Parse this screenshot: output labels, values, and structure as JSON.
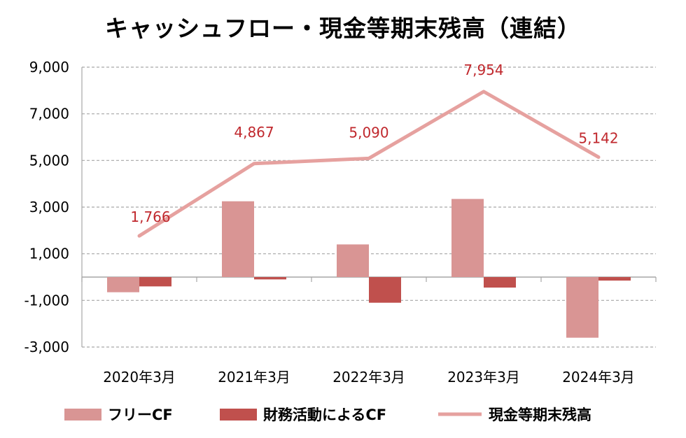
{
  "chart_data": {
    "type": "bar",
    "title": "キャッシュフロー・現金等期末残高（連結）",
    "categories": [
      "2020年3月",
      "2021年3月",
      "2022年3月",
      "2023年3月",
      "2024年3月"
    ],
    "ylim": [
      -3000,
      9000
    ],
    "yticks": [
      "9,000",
      "7,000",
      "5,000",
      "3,000",
      "1,000",
      "-1,000",
      "-3,000"
    ],
    "ytick_values": [
      9000,
      7000,
      5000,
      3000,
      1000,
      -1000,
      -3000
    ],
    "grid": true,
    "legend_position": "bottom",
    "series": [
      {
        "name": "フリーCF",
        "kind": "bar",
        "color": "#d99594",
        "values": [
          -650,
          3250,
          1400,
          3350,
          -2600
        ]
      },
      {
        "name": "財務活動によるCF",
        "kind": "bar",
        "color": "#c0504d",
        "values": [
          -400,
          -100,
          -1100,
          -450,
          -150
        ]
      },
      {
        "name": "現金等期末残高",
        "kind": "line",
        "color": "#e6a19f",
        "values": [
          1766,
          4867,
          5090,
          7954,
          5142
        ],
        "labels": [
          "1,766",
          "4,867",
          "5,090",
          "7,954",
          "5,142"
        ],
        "label_color": "#c0282d"
      }
    ]
  }
}
